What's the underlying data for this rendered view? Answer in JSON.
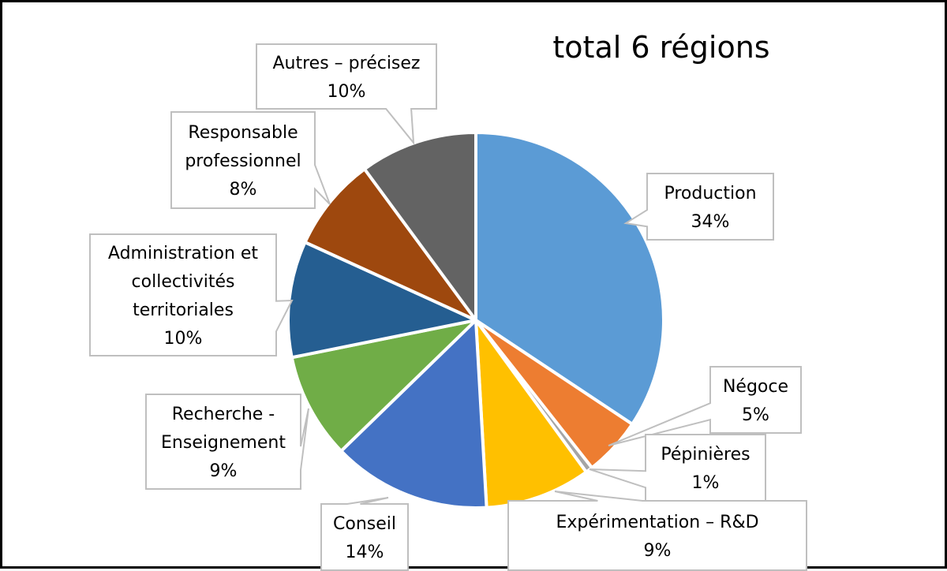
{
  "chart_data": {
    "type": "pie",
    "title": "total 6 régions",
    "slices": [
      {
        "label_lines": [
          "Production"
        ],
        "percent_text": "34%",
        "value": 34,
        "color": "#5B9BD5"
      },
      {
        "label_lines": [
          "Négoce"
        ],
        "percent_text": "5%",
        "value": 5,
        "color": "#ED7D31"
      },
      {
        "label_lines": [
          "Pépinières"
        ],
        "percent_text": "1%",
        "value": 0.6,
        "color": "#A5A5A5"
      },
      {
        "label_lines": [
          "Expérimentation – R&D"
        ],
        "percent_text": "9%",
        "value": 9,
        "color": "#FFC000"
      },
      {
        "label_lines": [
          "Conseil"
        ],
        "percent_text": "14%",
        "value": 13.5,
        "color": "#4472C4"
      },
      {
        "label_lines": [
          "Recherche -",
          "Enseignement"
        ],
        "percent_text": "9%",
        "value": 9,
        "color": "#70AD47"
      },
      {
        "label_lines": [
          "Administration et",
          "collectivités",
          "territoriales"
        ],
        "percent_text": "10%",
        "value": 9.9,
        "color": "#255E91"
      },
      {
        "label_lines": [
          "Responsable",
          "professionnel"
        ],
        "percent_text": "8%",
        "value": 8,
        "color": "#9E480E"
      },
      {
        "label_lines": [
          "Autres – précisez"
        ],
        "percent_text": "10%",
        "value": 10,
        "color": "#636363"
      }
    ]
  }
}
